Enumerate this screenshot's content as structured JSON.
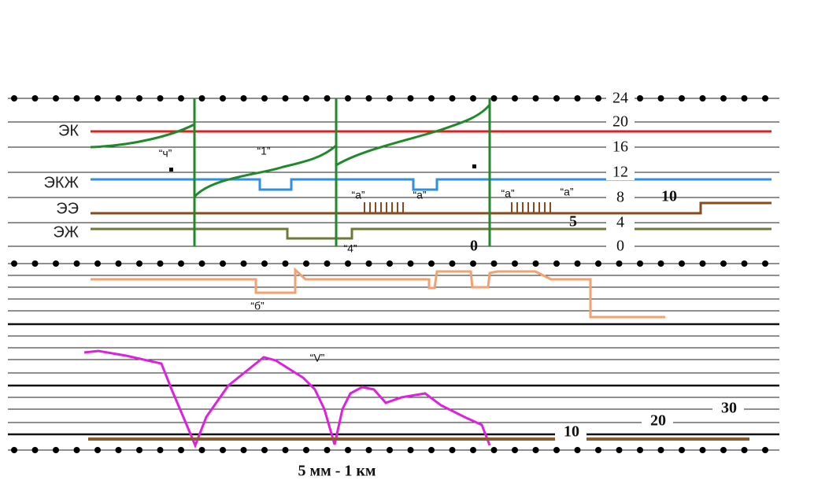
{
  "channels": [
    {
      "label": "ЭК"
    },
    {
      "label": "ЭКЖ"
    },
    {
      "label": "ЭЭ"
    },
    {
      "label": "ЭЖ"
    }
  ],
  "top_scale": [
    "24",
    "20",
    "16",
    "12",
    "8",
    "4",
    "0"
  ],
  "side_marks": {
    "ten": "10",
    "five": "5",
    "zero": "0"
  },
  "notes": {
    "ch": "“ч”",
    "one": "“1”",
    "a1": "“а”",
    "a2": "“а”",
    "a3": "“а”",
    "a4": "“а”",
    "four": "“4”",
    "b": "“б”",
    "v": "“V”"
  },
  "speed_scale": [
    "10",
    "20",
    "30"
  ],
  "footer": "5 мм - 1 км"
}
